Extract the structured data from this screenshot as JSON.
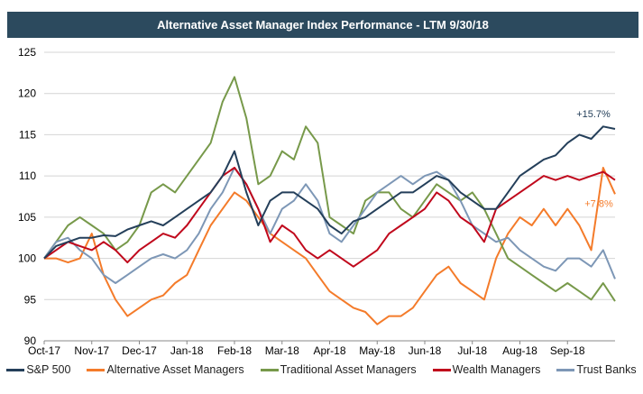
{
  "chart_data": {
    "type": "line",
    "title": "Alternative Asset Manager Index Performance - LTM 9/30/18",
    "xlabel": "",
    "ylabel": "",
    "ylim": [
      90,
      125
    ],
    "yticks": [
      "90",
      "95",
      "100",
      "105",
      "110",
      "115",
      "120",
      "125"
    ],
    "xticks": [
      "Oct-17",
      "Nov-17",
      "Dec-17",
      "Jan-18",
      "Feb-18",
      "Mar-18",
      "Apr-18",
      "May-18",
      "Jun-18",
      "Jul-18",
      "Aug-18",
      "Sep-18"
    ],
    "x_range_months": [
      0,
      12
    ],
    "grid": "horizontal",
    "legend_position": "bottom",
    "annotations": [
      {
        "series": "S&P 500",
        "text": "+15.7%"
      },
      {
        "series": "Alternative Asset Managers",
        "text": "+7.8%"
      }
    ],
    "x": [
      0,
      0.25,
      0.5,
      0.75,
      1,
      1.25,
      1.5,
      1.75,
      2,
      2.25,
      2.5,
      2.75,
      3,
      3.25,
      3.5,
      3.75,
      4,
      4.25,
      4.5,
      4.75,
      5,
      5.25,
      5.5,
      5.75,
      6,
      6.25,
      6.5,
      6.75,
      7,
      7.25,
      7.5,
      7.75,
      8,
      8.25,
      8.5,
      8.75,
      9,
      9.25,
      9.5,
      9.75,
      10,
      10.25,
      10.5,
      10.75,
      11,
      11.25,
      11.5,
      11.75,
      12
    ],
    "series": [
      {
        "name": "S&P 500",
        "color": "#243f5a",
        "values": [
          100,
          101.5,
          102,
          102.5,
          102.5,
          102.8,
          102.7,
          103.5,
          104,
          104.5,
          104,
          105,
          106,
          107,
          108,
          110,
          113,
          108,
          104,
          107,
          108,
          108,
          107,
          106,
          104,
          103,
          104.5,
          105,
          106,
          107,
          108,
          108,
          109,
          110,
          109.5,
          108,
          107,
          106,
          106,
          108,
          110,
          111,
          112,
          112.5,
          114,
          115,
          114.5,
          116,
          115.7
        ]
      },
      {
        "name": "Alternative Asset Managers",
        "color": "#f47b2a",
        "values": [
          100,
          100,
          99.5,
          100,
          103,
          98,
          95,
          93,
          94,
          95,
          95.5,
          97,
          98,
          101,
          104,
          106,
          108,
          107,
          105,
          103,
          102,
          101,
          100,
          98,
          96,
          95,
          94,
          93.5,
          92,
          93,
          93,
          94,
          96,
          98,
          99,
          97,
          96,
          95,
          100,
          103,
          105,
          104,
          106,
          104,
          106,
          104,
          101,
          111,
          107.8
        ]
      },
      {
        "name": "Traditional Asset Managers",
        "color": "#77994a",
        "values": [
          100,
          102,
          104,
          105,
          104,
          103,
          101,
          102,
          104,
          108,
          109,
          108,
          110,
          112,
          114,
          119,
          122,
          117,
          109,
          110,
          113,
          112,
          116,
          114,
          105,
          104,
          103,
          107,
          108,
          108,
          106,
          105,
          107,
          109,
          108,
          107,
          108,
          106,
          103,
          100,
          99,
          98,
          97,
          96,
          97,
          96,
          95,
          97,
          94.8
        ]
      },
      {
        "name": "Wealth Managers",
        "color": "#c0081c",
        "values": [
          100,
          101,
          102,
          101.5,
          101,
          102,
          101,
          99.5,
          101,
          102,
          103,
          102.5,
          104,
          106,
          108,
          110,
          111,
          109,
          106,
          102,
          104,
          103,
          101,
          100,
          101,
          100,
          99,
          100,
          101,
          103,
          104,
          105,
          106,
          108,
          107,
          105,
          104,
          102,
          106,
          107,
          108,
          109,
          110,
          109.5,
          110,
          109.5,
          110,
          110.5,
          109.5
        ]
      },
      {
        "name": "Trust Banks",
        "color": "#7d97b6",
        "values": [
          100,
          102,
          102.5,
          101,
          100,
          98,
          97,
          98,
          99,
          100,
          100.5,
          100,
          101,
          103,
          106,
          108,
          111,
          109,
          106,
          103,
          106,
          107,
          109,
          107,
          103,
          102,
          104,
          106,
          108,
          109,
          110,
          109,
          110,
          110.5,
          109.5,
          107,
          104,
          103,
          102,
          102.5,
          101,
          100,
          99,
          98.5,
          100,
          100,
          99,
          101,
          97.5
        ]
      }
    ]
  }
}
